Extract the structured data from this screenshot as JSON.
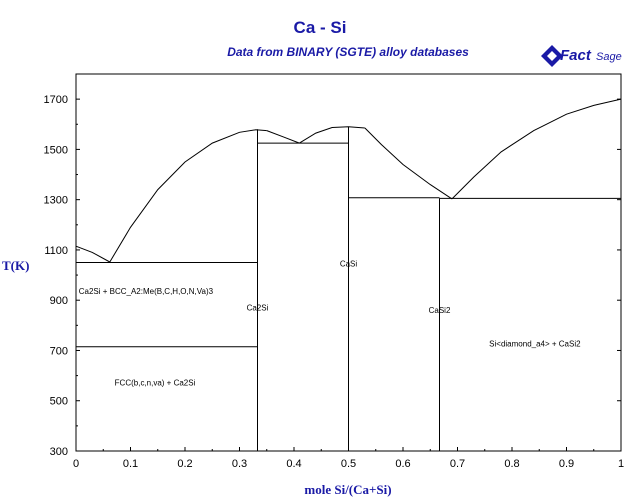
{
  "header": {
    "title": "Ca - Si",
    "subtitle": "Data from BINARY (SGTE) alloy databases",
    "logo_text": "FactSage"
  },
  "chart_data": {
    "type": "line",
    "title": "Ca - Si",
    "subtitle": "Data from BINARY (SGTE) alloy databases",
    "xlabel": "mole Si/(Ca+Si)",
    "ylabel": "T(K)",
    "xlim": [
      0,
      1
    ],
    "ylim": [
      300,
      1800
    ],
    "x_ticks": [
      0,
      0.1,
      0.2,
      0.3,
      0.4,
      0.5,
      0.6,
      0.7,
      0.8,
      0.9,
      1
    ],
    "x_tick_labels": [
      "0",
      "0.1",
      "0.2",
      "0.3",
      "0.4",
      "0.5",
      "0.6",
      "0.7",
      "0.8",
      "0.9",
      "1"
    ],
    "y_ticks": [
      300,
      500,
      700,
      900,
      1100,
      1300,
      1500,
      1700
    ],
    "y_tick_labels": [
      "300",
      "500",
      "700",
      "900",
      "1100",
      "1300",
      "1500",
      "1700"
    ],
    "grid": false,
    "series": [
      {
        "values_xy": [
          [
            0,
            1115
          ],
          [
            0.03,
            1090
          ],
          [
            0.062,
            1052
          ]
        ]
      },
      {
        "values_xy": [
          [
            0.062,
            1052
          ],
          [
            0.1,
            1190
          ],
          [
            0.15,
            1340
          ],
          [
            0.2,
            1450
          ],
          [
            0.25,
            1525
          ],
          [
            0.3,
            1568
          ],
          [
            0.33,
            1578
          ],
          [
            0.35,
            1575
          ]
        ]
      },
      {
        "values_xy": [
          [
            0.35,
            1575
          ],
          [
            0.38,
            1550
          ],
          [
            0.41,
            1525
          ]
        ]
      },
      {
        "values_xy": [
          [
            0.41,
            1525
          ],
          [
            0.44,
            1565
          ],
          [
            0.47,
            1587
          ],
          [
            0.5,
            1590
          ],
          [
            0.53,
            1585
          ]
        ]
      },
      {
        "values_xy": [
          [
            0.53,
            1585
          ],
          [
            0.56,
            1520
          ],
          [
            0.6,
            1440
          ],
          [
            0.65,
            1360
          ],
          [
            0.69,
            1303
          ]
        ]
      },
      {
        "values_xy": [
          [
            0.69,
            1303
          ],
          [
            0.73,
            1390
          ],
          [
            0.78,
            1490
          ],
          [
            0.84,
            1575
          ],
          [
            0.9,
            1640
          ],
          [
            0.95,
            1675
          ],
          [
            1,
            1700
          ]
        ]
      },
      {
        "values_xy": [
          [
            0,
            1050
          ],
          [
            0.333,
            1050
          ]
        ]
      },
      {
        "values_xy": [
          [
            0,
            715
          ],
          [
            0.333,
            715
          ]
        ]
      },
      {
        "values_xy": [
          [
            0.333,
            1525
          ],
          [
            0.5,
            1525
          ]
        ]
      },
      {
        "values_xy": [
          [
            0.5,
            1308
          ],
          [
            0.667,
            1308
          ]
        ]
      },
      {
        "values_xy": [
          [
            0.667,
            1305
          ],
          [
            1,
            1305
          ]
        ]
      },
      {
        "values_xy": [
          [
            0.333,
            300
          ],
          [
            0.333,
            1580
          ]
        ]
      },
      {
        "values_xy": [
          [
            0.5,
            300
          ],
          [
            0.5,
            1590
          ]
        ]
      },
      {
        "values_xy": [
          [
            0.667,
            300
          ],
          [
            0.667,
            1305
          ]
        ]
      }
    ],
    "annotations": [
      {
        "text": "Ca2Si + BCC_A2:Me(B,C,H,O,N,Va)3",
        "x": 0.005,
        "y": 925
      },
      {
        "text": "Ca2Si",
        "x": 0.333,
        "y": 860
      },
      {
        "text": "CaSi",
        "x": 0.5,
        "y": 1035
      },
      {
        "text": "CaSi2",
        "x": 0.667,
        "y": 850
      },
      {
        "text": "Si<diamond_a4> + CaSi2",
        "x": 0.842,
        "y": 715
      },
      {
        "text": "FCC(b,c,n,va) + Ca2Si",
        "x": 0.145,
        "y": 560
      }
    ]
  }
}
